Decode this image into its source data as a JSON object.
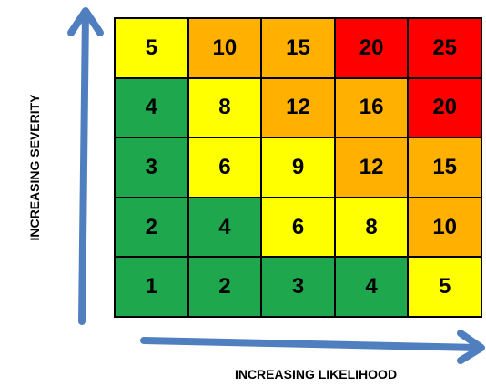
{
  "title": "",
  "y_axis_label": "INCREASING SEVERITY",
  "x_axis_label": "INCREASING LIKELIHOOD",
  "colors": {
    "green": "#1ea74d",
    "yellow": "#ffff00",
    "orange": "#ffb000",
    "red": "#ff0000",
    "arrow": "#4f7fbf"
  },
  "matrix": {
    "rows": [
      {
        "severity": 5,
        "cells": [
          {
            "value": "5",
            "color": "yellow"
          },
          {
            "value": "10",
            "color": "orange"
          },
          {
            "value": "15",
            "color": "orange"
          },
          {
            "value": "20",
            "color": "red"
          },
          {
            "value": "25",
            "color": "red"
          }
        ]
      },
      {
        "severity": 4,
        "cells": [
          {
            "value": "4",
            "color": "green"
          },
          {
            "value": "8",
            "color": "yellow"
          },
          {
            "value": "12",
            "color": "orange"
          },
          {
            "value": "16",
            "color": "orange"
          },
          {
            "value": "20",
            "color": "red"
          }
        ]
      },
      {
        "severity": 3,
        "cells": [
          {
            "value": "3",
            "color": "green"
          },
          {
            "value": "6",
            "color": "yellow"
          },
          {
            "value": "9",
            "color": "yellow"
          },
          {
            "value": "12",
            "color": "orange"
          },
          {
            "value": "15",
            "color": "orange"
          }
        ]
      },
      {
        "severity": 2,
        "cells": [
          {
            "value": "2",
            "color": "green"
          },
          {
            "value": "4",
            "color": "green"
          },
          {
            "value": "6",
            "color": "yellow"
          },
          {
            "value": "8",
            "color": "yellow"
          },
          {
            "value": "10",
            "color": "orange"
          }
        ]
      },
      {
        "severity": 1,
        "cells": [
          {
            "value": "1",
            "color": "green"
          },
          {
            "value": "2",
            "color": "green"
          },
          {
            "value": "3",
            "color": "green"
          },
          {
            "value": "4",
            "color": "green"
          },
          {
            "value": "5",
            "color": "yellow"
          }
        ]
      }
    ]
  }
}
